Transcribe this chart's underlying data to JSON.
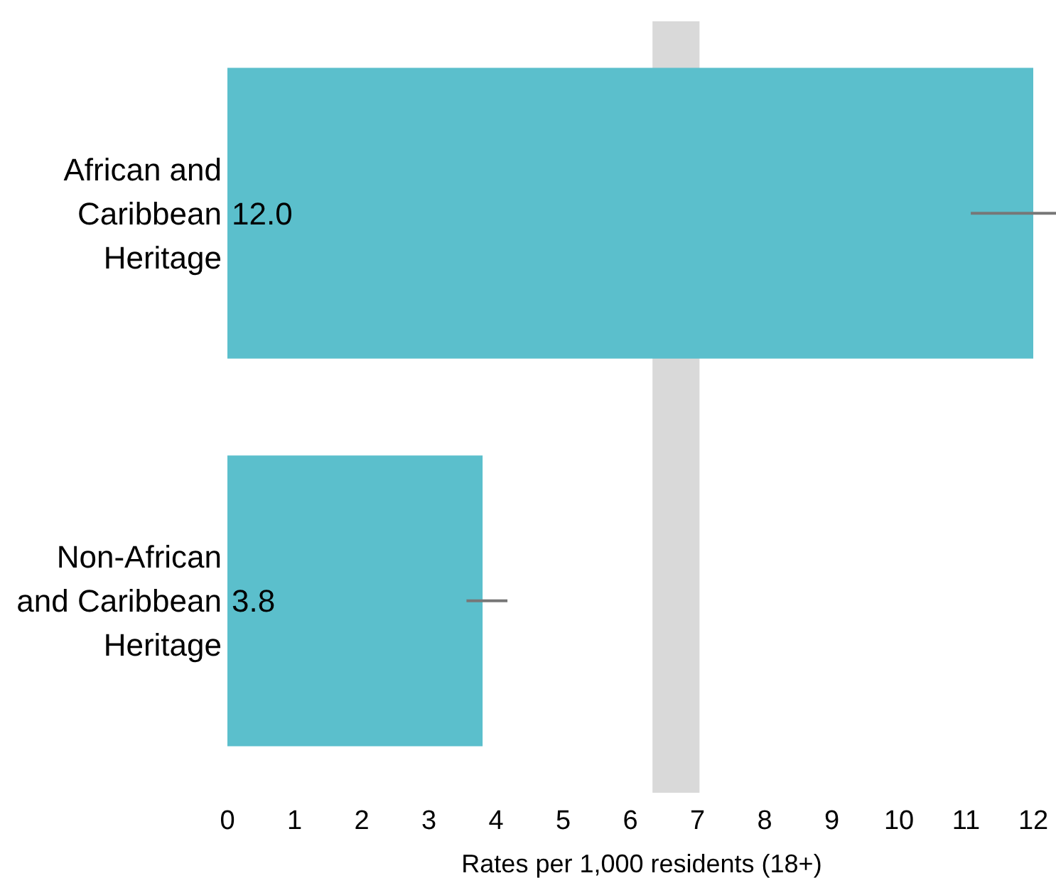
{
  "chart_data": {
    "type": "bar",
    "orientation": "horizontal",
    "xlabel": "Rates per 1,000 residents (18+)",
    "categories": [
      "African and Caribbean Heritage",
      "Non-African and Caribbean Heritage"
    ],
    "values": [
      12.0,
      3.8
    ],
    "value_labels": [
      "12.0",
      "3.8"
    ],
    "errors": [
      [
        11.07,
        12.34
      ],
      [
        3.56,
        4.17
      ]
    ],
    "color": "#5bbfcc",
    "xlim": [
      0,
      12
    ],
    "xticks": [
      0,
      1,
      2,
      3,
      4,
      5,
      6,
      7,
      8,
      9,
      10,
      11,
      12
    ],
    "bands": [
      {
        "axis": "x",
        "from": 6.33,
        "to": 7.03,
        "color": "#d9d9d9"
      }
    ],
    "grid": false
  }
}
